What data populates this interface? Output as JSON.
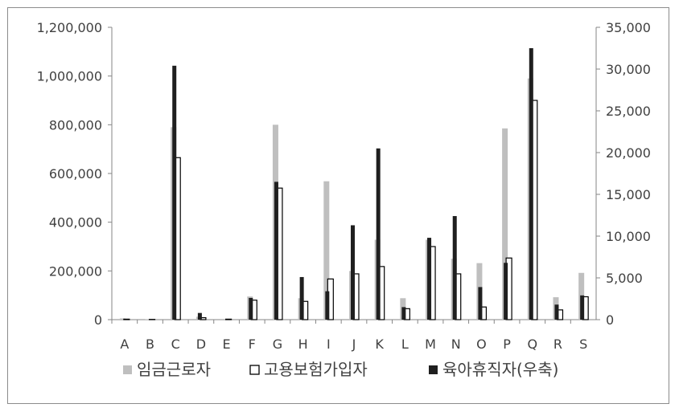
{
  "chart_data": {
    "type": "bar",
    "categories": [
      "A",
      "B",
      "C",
      "D",
      "E",
      "F",
      "G",
      "H",
      "I",
      "J",
      "K",
      "L",
      "M",
      "N",
      "O",
      "P",
      "Q",
      "R",
      "S"
    ],
    "y_left": {
      "min": 0,
      "max": 1200000,
      "ticks": [
        0,
        200000,
        400000,
        600000,
        800000,
        1000000,
        1200000
      ],
      "tick_labels": [
        "0",
        "200,000",
        "400,000",
        "600,000",
        "800,000",
        "1,000,000",
        "1,200,000"
      ]
    },
    "y_right": {
      "min": 0,
      "max": 35000,
      "ticks": [
        0,
        5000,
        10000,
        15000,
        20000,
        25000,
        30000,
        35000
      ],
      "tick_labels": [
        "0",
        "5,000",
        "10,000",
        "15,000",
        "20,000",
        "25,000",
        "30,000",
        "35,000"
      ]
    },
    "series": [
      {
        "name": "임금근로자",
        "axis": "left",
        "color": "#bfbfbf",
        "marker": "filled-square",
        "values": [
          5000,
          2000,
          790000,
          12000,
          3000,
          95000,
          800000,
          88000,
          568000,
          200000,
          328000,
          88000,
          328000,
          250000,
          232000,
          785000,
          990000,
          92000,
          192000
        ]
      },
      {
        "name": "고용보험가입자",
        "axis": "left",
        "color": "#ffffff",
        "marker": "hollow-square",
        "values": [
          2000,
          1000,
          665000,
          8000,
          2000,
          80000,
          540000,
          75000,
          167000,
          188000,
          218000,
          45000,
          300000,
          188000,
          52000,
          253000,
          900000,
          40000,
          94000
        ]
      },
      {
        "name": "육아휴직자(우축)",
        "axis": "right",
        "color": "#1f1f1f",
        "marker": "filled-square",
        "values": [
          0,
          0,
          30400,
          800,
          0,
          2600,
          16500,
          5100,
          3400,
          11300,
          20500,
          1500,
          9800,
          12400,
          3900,
          6800,
          32500,
          1800,
          2900
        ]
      }
    ],
    "legend_position": "bottom",
    "grid": false
  }
}
